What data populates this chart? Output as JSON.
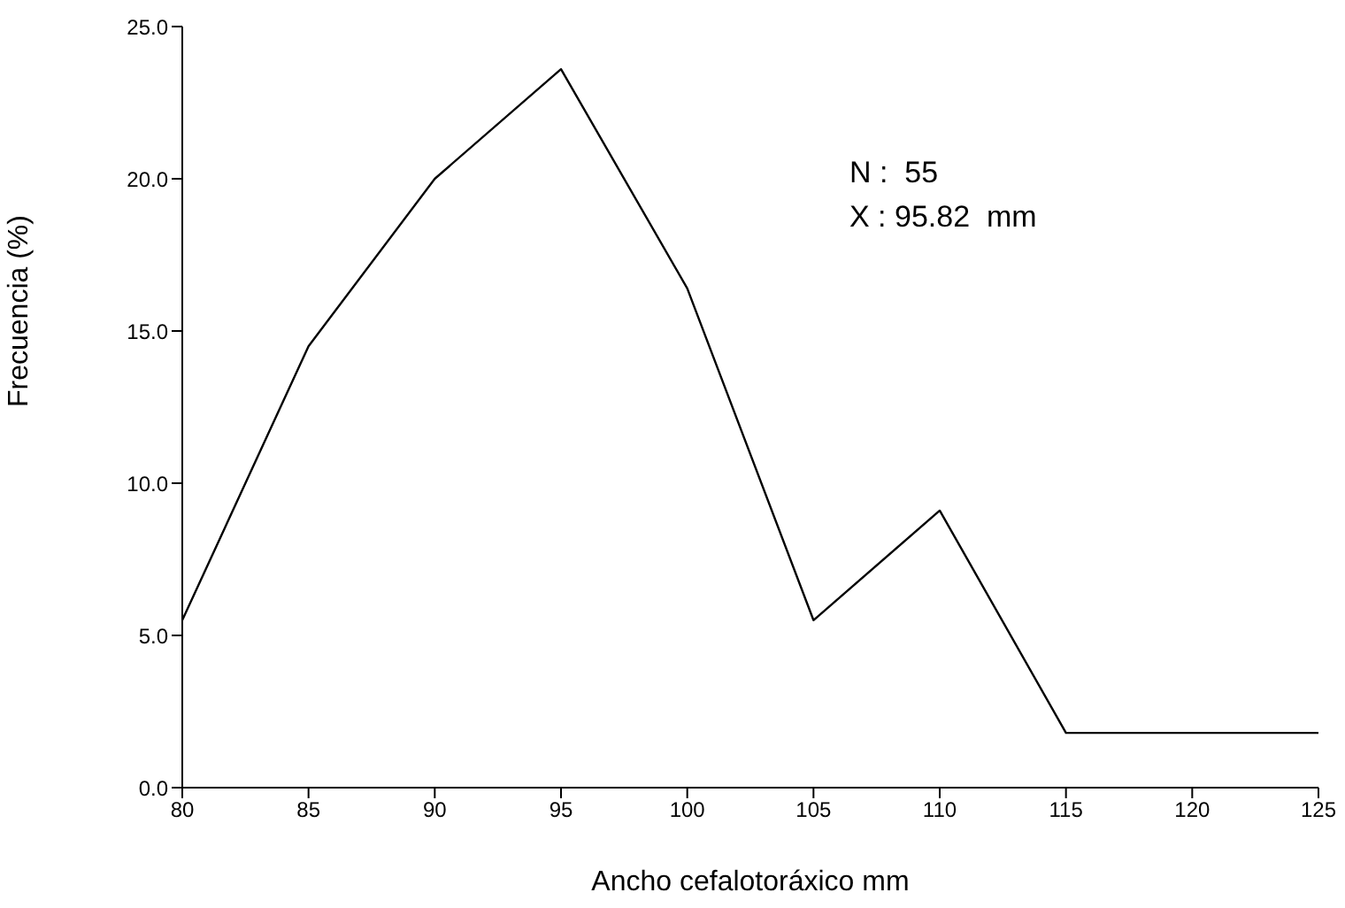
{
  "chart_data": {
    "type": "line",
    "xlabel": "Ancho cefalotoráxico mm",
    "ylabel": "Frecuencia  (%)",
    "categories": [
      "80",
      "85",
      "90",
      "95",
      "100",
      "105",
      "110",
      "115",
      "120",
      "125"
    ],
    "series": [
      {
        "color": "#000000",
        "values": [
          5.5,
          14.5,
          20.0,
          23.6,
          16.4,
          5.5,
          9.1,
          1.8,
          1.8,
          1.8
        ]
      }
    ],
    "ylim": [
      0,
      25
    ],
    "yticks": [
      {
        "value": 0,
        "label": "0.0"
      },
      {
        "value": 5,
        "label": "5.0"
      },
      {
        "value": 10,
        "label": "10.0"
      },
      {
        "value": 15,
        "label": "15.0"
      },
      {
        "value": 20,
        "label": "20.0"
      },
      {
        "value": 25,
        "label": "25.0"
      }
    ],
    "annotations": [
      "N :  55",
      "X : 95.82  mm"
    ],
    "grid": false,
    "legend": false,
    "marker": "none",
    "line_style": "solid"
  }
}
